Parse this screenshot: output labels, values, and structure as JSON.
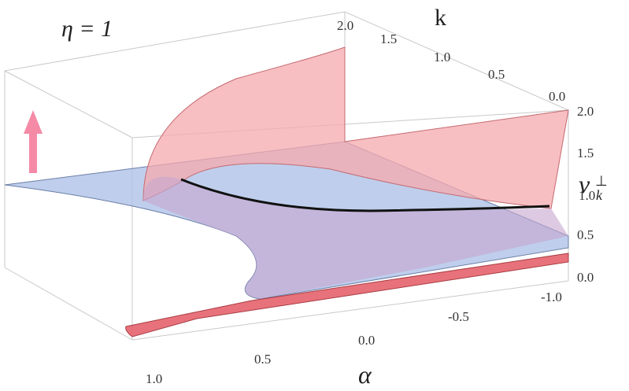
{
  "chart_data": {
    "type": "surface3d",
    "title": "η = 1",
    "axes": {
      "alpha": {
        "label": "α",
        "range": [
          -1.0,
          1.0
        ],
        "ticks": [
          "1.0",
          "0.5",
          "0.0",
          "-0.5",
          "-1.0"
        ]
      },
      "k": {
        "label": "k",
        "range": [
          0.0,
          2.0
        ],
        "ticks": [
          "0.0",
          "0.5",
          "1.0",
          "1.5",
          "2.0"
        ]
      },
      "z": {
        "label_main": "ν",
        "label_sub": "k",
        "label_sup": "⊥",
        "range": [
          0.0,
          2.0
        ],
        "ticks": [
          "0.0",
          "0.5",
          "1.0",
          "1.5",
          "2.0"
        ]
      }
    },
    "surfaces": [
      {
        "color": "#f0a0a6",
        "description": "red surface rising from about 0.2 at alpha=-1 to 2.0 at alpha=1, k=2"
      },
      {
        "color": "#a9bde6",
        "description": "flat blue plane near nu=1.0"
      }
    ],
    "intersection_curve": {
      "color": "#111111",
      "points": [
        {
          "alpha": 0.8,
          "k": 0.0,
          "nu": 1.05
        },
        {
          "alpha": 0.6,
          "k": 0.6,
          "nu": 1.0
        },
        {
          "alpha": 0.2,
          "k": 1.2,
          "nu": 1.0
        },
        {
          "alpha": -0.3,
          "k": 1.8,
          "nu": 1.0
        },
        {
          "alpha": -0.8,
          "k": 2.0,
          "nu": 1.0
        }
      ]
    },
    "arrow": {
      "color": "#f48aa6",
      "direction": "up"
    },
    "grid": false
  }
}
